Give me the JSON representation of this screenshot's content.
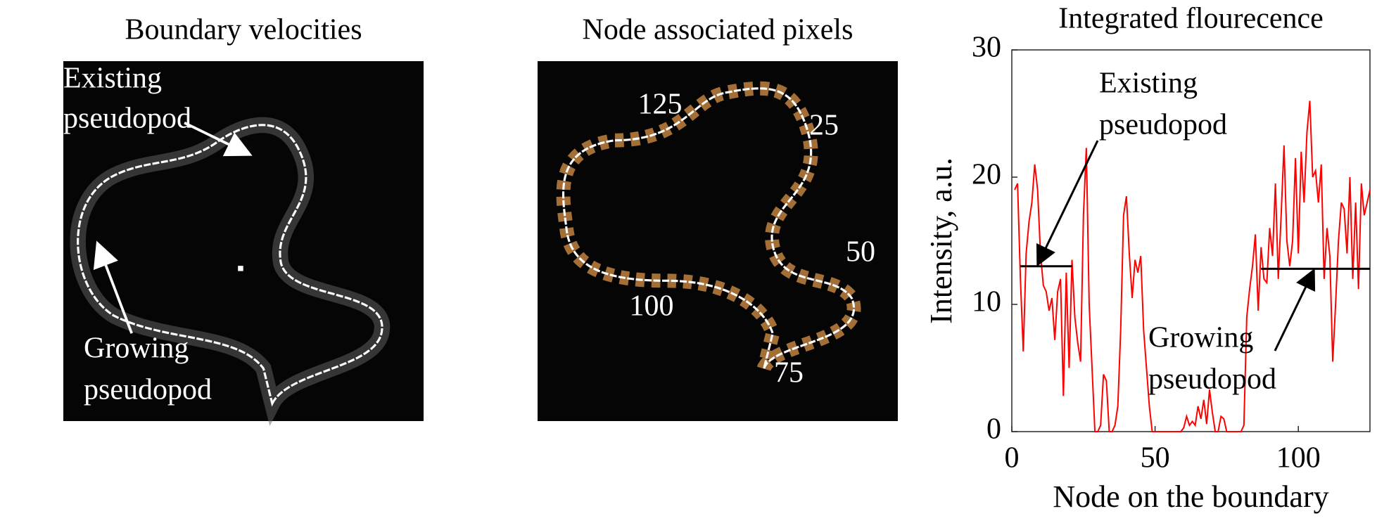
{
  "panels": [
    {
      "title": "Boundary velocities",
      "labels": [
        "Existing",
        "pseudopod",
        "Growing",
        "pseudopod"
      ]
    },
    {
      "title": "Node associated pixels",
      "labels": [
        "125",
        "25",
        "50",
        "75",
        "100"
      ]
    }
  ],
  "chart_data": {
    "type": "line",
    "title": "Integrated flourecence",
    "xlabel": "Node on the boundary",
    "ylabel": "Intensity, a.u.",
    "xlim": [
      0,
      125
    ],
    "xticks": [
      0,
      50,
      100
    ],
    "ylim": [
      0,
      30
    ],
    "yticks": [
      0,
      10,
      20,
      30
    ],
    "series": [
      {
        "color": "#ff0000",
        "x": [
          1,
          2,
          3,
          4,
          5,
          6,
          7,
          8,
          9,
          10,
          11,
          12,
          13,
          14,
          15,
          16,
          17,
          18,
          19,
          20,
          21,
          22,
          23,
          24,
          25,
          26,
          27,
          28,
          29,
          30,
          31,
          32,
          33,
          34,
          35,
          36,
          37,
          38,
          39,
          40,
          41,
          42,
          43,
          44,
          45,
          46,
          47,
          48,
          49,
          50,
          51,
          52,
          53,
          54,
          55,
          56,
          57,
          58,
          59,
          60,
          61,
          62,
          63,
          64,
          65,
          66,
          67,
          68,
          69,
          70,
          71,
          72,
          73,
          74,
          75,
          76,
          77,
          78,
          79,
          80,
          81,
          82,
          83,
          84,
          85,
          86,
          87,
          88,
          89,
          90,
          91,
          92,
          93,
          94,
          95,
          96,
          97,
          98,
          99,
          100,
          101,
          102,
          103,
          104,
          105,
          106,
          107,
          108,
          109,
          110,
          111,
          112,
          113,
          114,
          115,
          116,
          117,
          118,
          119,
          120,
          121,
          122,
          123,
          124,
          125
        ],
        "values": [
          19,
          19.5,
          12,
          6.3,
          14,
          16.5,
          18,
          21,
          19,
          14,
          11.5,
          11,
          9.5,
          10.5,
          7.2,
          11,
          12,
          2.8,
          12.5,
          5,
          13.5,
          9,
          7,
          5.5,
          17,
          22.3,
          10,
          5,
          0,
          0,
          0.5,
          4.5,
          4,
          0,
          0,
          0.5,
          2,
          8,
          17,
          18.5,
          14,
          10.5,
          13.5,
          12.5,
          13.8,
          8,
          5,
          2,
          0,
          0,
          0,
          0,
          0,
          0,
          0,
          0,
          0,
          0,
          0,
          0.3,
          1.2,
          0.5,
          0.8,
          0.5,
          2,
          1,
          2.5,
          0.6,
          3.3,
          1.5,
          0,
          0,
          1.2,
          1,
          0,
          0,
          0,
          0,
          0,
          0,
          0.5,
          9,
          11.2,
          13,
          15.5,
          9.5,
          14.5,
          12,
          11.7,
          16,
          13.8,
          19.5,
          12,
          17,
          22.5,
          15,
          13,
          15,
          21.5,
          14,
          22,
          18,
          23.5,
          26,
          20,
          20.5,
          18,
          21,
          12,
          16,
          13.8,
          5.5,
          10,
          15,
          18,
          17.5,
          14,
          20,
          12,
          18,
          11.2,
          19.5,
          17,
          18,
          19
        ]
      },
      {
        "color": "#000000",
        "x": [
          3,
          21
        ],
        "values": [
          13,
          13
        ]
      },
      {
        "color": "#000000",
        "x": [
          87,
          125
        ],
        "values": [
          12.8,
          12.8
        ]
      }
    ],
    "annotations": [
      [
        "Existing",
        "pseudopod"
      ],
      [
        "Growing",
        "pseudopod"
      ]
    ]
  }
}
